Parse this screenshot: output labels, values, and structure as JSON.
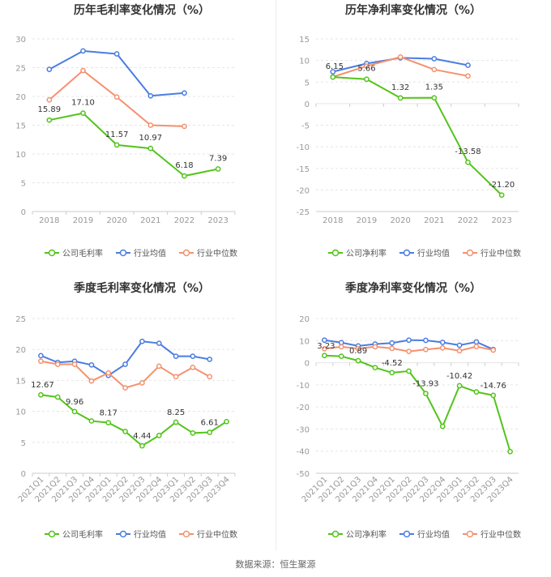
{
  "footer": "数据来源：恒生聚源",
  "colors": {
    "company": "#52c41a",
    "avg": "#4a7de2",
    "median": "#f4916e",
    "grid": "#e5e5e5",
    "axis_text": "#999999",
    "label_text": "#333333"
  },
  "chart_data": [
    {
      "type": "line",
      "title": "历年毛利率变化情况（%）",
      "categories": [
        "2018",
        "2019",
        "2020",
        "2021",
        "2022",
        "2023"
      ],
      "ylim": [
        0,
        30
      ],
      "yticks": [
        0,
        5,
        10,
        15,
        20,
        25,
        30
      ],
      "grid": true,
      "legend_position": "bottom",
      "series": [
        {
          "name": "公司毛利率",
          "values": [
            15.89,
            17.1,
            11.57,
            10.97,
            6.18,
            7.39
          ],
          "labels": [
            "15.89",
            "17.10",
            "11.57",
            "10.97",
            "6.18",
            "7.39"
          ]
        },
        {
          "name": "行业均值",
          "values": [
            24.7,
            27.9,
            27.4,
            20.1,
            20.6,
            null
          ]
        },
        {
          "name": "行业中位数",
          "values": [
            19.4,
            24.5,
            19.9,
            15.0,
            14.8,
            null
          ]
        }
      ]
    },
    {
      "type": "line",
      "title": "历年净利率变化情况（%）",
      "categories": [
        "2018",
        "2019",
        "2020",
        "2021",
        "2022",
        "2023"
      ],
      "ylim": [
        -25,
        15
      ],
      "yticks": [
        -25,
        -20,
        -15,
        -10,
        -5,
        0,
        5,
        10,
        15
      ],
      "grid": true,
      "legend_position": "bottom",
      "series": [
        {
          "name": "公司净利率",
          "values": [
            6.15,
            5.66,
            1.32,
            1.35,
            -13.58,
            -21.2
          ],
          "labels": [
            "6.15",
            "5.66",
            "1.32",
            "1.35",
            "-13.58",
            "-21.20"
          ]
        },
        {
          "name": "行业均值",
          "values": [
            7.4,
            9.3,
            10.6,
            10.4,
            8.9,
            null
          ]
        },
        {
          "name": "行业中位数",
          "values": [
            6.2,
            8.7,
            10.8,
            7.9,
            6.4,
            null
          ]
        }
      ]
    },
    {
      "type": "line",
      "title": "季度毛利率变化情况（%）",
      "categories": [
        "2021Q1",
        "2021Q2",
        "2021Q3",
        "2021Q4",
        "2022Q1",
        "2022Q2",
        "2022Q3",
        "2022Q4",
        "2023Q1",
        "2023Q2",
        "2023Q3",
        "2023Q4"
      ],
      "ylim": [
        0,
        25
      ],
      "yticks": [
        0,
        5,
        10,
        15,
        20,
        25
      ],
      "grid": true,
      "legend_position": "bottom",
      "series": [
        {
          "name": "公司毛利率",
          "values": [
            12.67,
            12.3,
            9.96,
            8.45,
            8.17,
            6.75,
            4.44,
            6.1,
            8.25,
            6.5,
            6.61,
            8.35
          ],
          "labels": [
            "12.67",
            "",
            "9.96",
            "",
            "8.17",
            "",
            "4.44",
            "",
            "8.25",
            "",
            "6.61",
            ""
          ]
        },
        {
          "name": "行业均值",
          "values": [
            19.0,
            17.9,
            18.1,
            17.5,
            15.8,
            17.6,
            21.3,
            21.0,
            18.9,
            18.9,
            18.4,
            null
          ]
        },
        {
          "name": "行业中位数",
          "values": [
            18.1,
            17.6,
            17.6,
            14.9,
            16.2,
            13.8,
            14.6,
            17.3,
            15.6,
            17.1,
            15.6,
            null
          ]
        }
      ]
    },
    {
      "type": "line",
      "title": "季度净利率变化情况（%）",
      "categories": [
        "2021Q1",
        "2021Q2",
        "2021Q3",
        "2021Q4",
        "2022Q1",
        "2022Q2",
        "2022Q3",
        "2022Q4",
        "2023Q1",
        "2023Q2",
        "2023Q3",
        "2023Q4"
      ],
      "ylim": [
        -50,
        20
      ],
      "yticks": [
        -50,
        -40,
        -30,
        -20,
        -10,
        0,
        10,
        20
      ],
      "grid": true,
      "legend_position": "bottom",
      "series": [
        {
          "name": "公司净利率",
          "values": [
            3.23,
            2.9,
            0.89,
            -2.2,
            -4.52,
            -3.8,
            -13.93,
            -28.8,
            -10.42,
            -13.2,
            -14.76,
            -40.2
          ],
          "labels": [
            "3.23",
            "",
            "0.89",
            "",
            "-4.52",
            "",
            "-13.93",
            "",
            "-10.42",
            "",
            "-14.76",
            ""
          ]
        },
        {
          "name": "行业均值",
          "values": [
            10.2,
            9.1,
            7.6,
            8.4,
            8.9,
            10.2,
            10.1,
            9.2,
            7.9,
            9.4,
            6.0,
            null
          ]
        },
        {
          "name": "行业中位数",
          "values": [
            6.3,
            7.2,
            6.4,
            7.2,
            6.5,
            5.1,
            6.0,
            6.7,
            5.4,
            7.3,
            5.7,
            null
          ]
        }
      ]
    }
  ]
}
